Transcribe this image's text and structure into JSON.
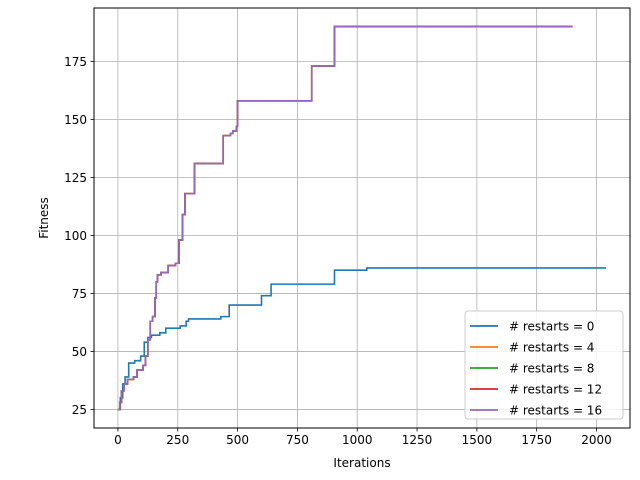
{
  "chart_data": {
    "type": "line",
    "title": "",
    "xlabel": "Iterations",
    "ylabel": "Fitness",
    "xlim": [
      -100,
      2140
    ],
    "ylim": [
      17,
      198
    ],
    "xticks": [
      0,
      250,
      500,
      750,
      1000,
      1250,
      1500,
      1750,
      2000
    ],
    "yticks": [
      25,
      50,
      75,
      100,
      125,
      150,
      175
    ],
    "grid": true,
    "legend_position": "lower-right",
    "series": [
      {
        "name": "# restarts = 0",
        "color": "#1f77b4",
        "step": true,
        "points": [
          [
            0,
            25
          ],
          [
            10,
            30
          ],
          [
            20,
            36
          ],
          [
            30,
            39
          ],
          [
            45,
            45
          ],
          [
            70,
            46
          ],
          [
            95,
            48
          ],
          [
            110,
            54
          ],
          [
            125,
            56
          ],
          [
            140,
            57
          ],
          [
            175,
            58
          ],
          [
            200,
            60
          ],
          [
            260,
            61
          ],
          [
            285,
            63
          ],
          [
            295,
            64
          ],
          [
            430,
            65
          ],
          [
            465,
            70
          ],
          [
            600,
            74
          ],
          [
            640,
            79
          ],
          [
            905,
            85
          ],
          [
            1040,
            86
          ],
          [
            2040,
            86
          ]
        ]
      },
      {
        "name": "# restarts = 4",
        "color": "#ff7f0e",
        "step": true,
        "points": [
          [
            0,
            25
          ],
          [
            8,
            28
          ],
          [
            15,
            33
          ],
          [
            25,
            36
          ],
          [
            40,
            38
          ],
          [
            65,
            39
          ],
          [
            80,
            42
          ],
          [
            105,
            44
          ],
          [
            115,
            48
          ],
          [
            125,
            55
          ],
          [
            135,
            63
          ],
          [
            145,
            65
          ],
          [
            155,
            73
          ],
          [
            160,
            80
          ],
          [
            165,
            83
          ],
          [
            180,
            84
          ],
          [
            210,
            87
          ],
          [
            240,
            88
          ],
          [
            255,
            98
          ],
          [
            270,
            109
          ],
          [
            280,
            118
          ],
          [
            320,
            131
          ],
          [
            440,
            143
          ],
          [
            470,
            144
          ],
          [
            480,
            145
          ],
          [
            495,
            147
          ],
          [
            500,
            158
          ],
          [
            810,
            173
          ],
          [
            905,
            190
          ],
          [
            1900,
            190
          ]
        ]
      },
      {
        "name": "# restarts = 8",
        "color": "#2ca02c",
        "step": true,
        "points": [
          [
            0,
            25
          ],
          [
            8,
            28
          ],
          [
            15,
            33
          ],
          [
            25,
            36
          ],
          [
            40,
            38
          ],
          [
            65,
            39
          ],
          [
            80,
            42
          ],
          [
            105,
            44
          ],
          [
            115,
            48
          ],
          [
            125,
            55
          ],
          [
            135,
            63
          ],
          [
            145,
            65
          ],
          [
            155,
            73
          ],
          [
            160,
            80
          ],
          [
            165,
            83
          ],
          [
            180,
            84
          ],
          [
            210,
            87
          ],
          [
            240,
            88
          ],
          [
            255,
            98
          ],
          [
            270,
            109
          ],
          [
            280,
            118
          ],
          [
            320,
            131
          ],
          [
            440,
            143
          ],
          [
            470,
            144
          ],
          [
            480,
            145
          ],
          [
            495,
            147
          ],
          [
            500,
            158
          ],
          [
            810,
            173
          ],
          [
            905,
            190
          ],
          [
            1900,
            190
          ]
        ]
      },
      {
        "name": "# restarts = 12",
        "color": "#d62728",
        "step": true,
        "points": [
          [
            0,
            25
          ],
          [
            8,
            28
          ],
          [
            15,
            33
          ],
          [
            25,
            36
          ],
          [
            40,
            38
          ],
          [
            65,
            39
          ],
          [
            80,
            42
          ],
          [
            105,
            44
          ],
          [
            115,
            48
          ],
          [
            125,
            55
          ],
          [
            135,
            63
          ],
          [
            145,
            65
          ],
          [
            155,
            73
          ],
          [
            160,
            80
          ],
          [
            165,
            83
          ],
          [
            180,
            84
          ],
          [
            210,
            87
          ],
          [
            240,
            88
          ],
          [
            255,
            98
          ],
          [
            270,
            109
          ],
          [
            280,
            118
          ],
          [
            320,
            131
          ],
          [
            440,
            143
          ],
          [
            470,
            144
          ],
          [
            480,
            145
          ],
          [
            495,
            147
          ],
          [
            500,
            158
          ],
          [
            810,
            173
          ],
          [
            905,
            190
          ],
          [
            1900,
            190
          ]
        ]
      },
      {
        "name": "# restarts = 16",
        "color": "#9467bd",
        "step": true,
        "points": [
          [
            0,
            25
          ],
          [
            8,
            28
          ],
          [
            15,
            33
          ],
          [
            25,
            36
          ],
          [
            40,
            38
          ],
          [
            65,
            39
          ],
          [
            80,
            42
          ],
          [
            105,
            44
          ],
          [
            115,
            48
          ],
          [
            125,
            55
          ],
          [
            135,
            63
          ],
          [
            145,
            65
          ],
          [
            155,
            73
          ],
          [
            160,
            80
          ],
          [
            165,
            83
          ],
          [
            180,
            84
          ],
          [
            210,
            87
          ],
          [
            240,
            88
          ],
          [
            255,
            98
          ],
          [
            270,
            109
          ],
          [
            280,
            118
          ],
          [
            320,
            131
          ],
          [
            440,
            143
          ],
          [
            470,
            144
          ],
          [
            480,
            145
          ],
          [
            495,
            147
          ],
          [
            500,
            158
          ],
          [
            810,
            173
          ],
          [
            905,
            190
          ],
          [
            1900,
            190
          ]
        ]
      }
    ]
  }
}
